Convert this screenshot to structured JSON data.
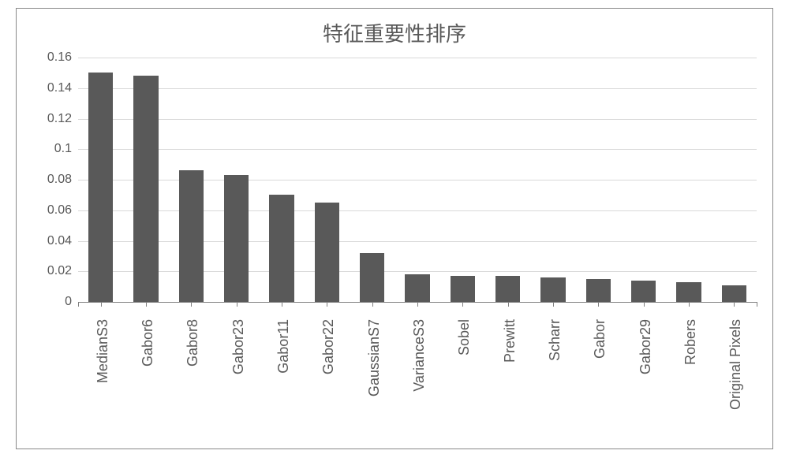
{
  "chart": {
    "type": "bar",
    "title": "特征重要性排序",
    "title_fontsize": 26,
    "title_color": "#595959",
    "background_color": "#ffffff",
    "border_color": "#888888",
    "grid_color": "#d9d9d9",
    "axis_color": "#808080",
    "label_color": "#595959",
    "ytick_fontsize": 16,
    "xtick_fontsize": 18,
    "bar_color": "#595959",
    "bar_width": 0.55,
    "ylim": [
      0,
      0.16
    ],
    "ytick_step": 0.02,
    "yticks": [
      0,
      0.02,
      0.04,
      0.06,
      0.08,
      0.1,
      0.12,
      0.14,
      0.16
    ],
    "categories": [
      "MedianS3",
      "Gabor6",
      "Gabor8",
      "Gabor23",
      "Gabor11",
      "Gabor22",
      "GaussianS7",
      "VarianceS3",
      "Sobel",
      "Prewitt",
      "Scharr",
      "Gabor",
      "Gabor29",
      "Robers",
      "Original Pixels"
    ],
    "values": [
      0.15,
      0.148,
      0.086,
      0.083,
      0.07,
      0.065,
      0.032,
      0.018,
      0.017,
      0.017,
      0.016,
      0.015,
      0.014,
      0.013,
      0.011
    ]
  }
}
